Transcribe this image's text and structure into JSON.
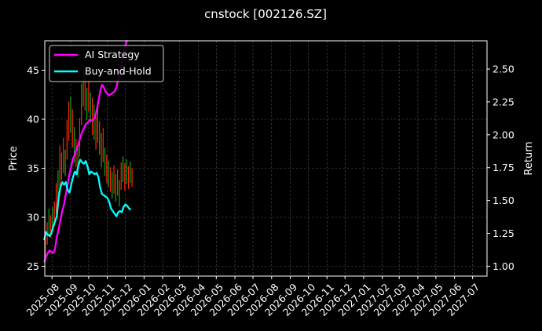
{
  "chart_data": {
    "type": "line",
    "title": "cnstock [002126.SZ]",
    "ylabel": "Price",
    "y2label": "Return",
    "grid": true,
    "legend_position": "top-left",
    "x_ticks": [
      "2025-08",
      "2025-09",
      "2025-10",
      "2025-11",
      "2025-12",
      "2026-01",
      "2026-02",
      "2026-03",
      "2026-04",
      "2026-05",
      "2026-06",
      "2026-07",
      "2026-08",
      "2026-09",
      "2026-10",
      "2026-11",
      "2026-12",
      "2027-01",
      "2027-02",
      "2027-03",
      "2027-04",
      "2027-05",
      "2027-06",
      "2027-07"
    ],
    "xlim": [
      "2025-07-20",
      "2027-07-25"
    ],
    "ylim": [
      24,
      48
    ],
    "y_ticks": [
      25,
      30,
      35,
      40,
      45
    ],
    "y2lim": [
      0.925,
      2.715
    ],
    "y2_ticks": [
      "1.00",
      "1.25",
      "1.50",
      "1.75",
      "2.00",
      "2.25",
      "2.50"
    ],
    "price_bars": {
      "colors": {
        "up": "#ff2a00",
        "down": "#1aa31a"
      },
      "bars": [
        {
          "date": "2025-07-21",
          "low": 25.8,
          "high": 27.9,
          "dir": "up"
        },
        {
          "date": "2025-07-24",
          "low": 27.2,
          "high": 29.5,
          "dir": "up"
        },
        {
          "date": "2025-07-27",
          "low": 28.1,
          "high": 30.9,
          "dir": "down"
        },
        {
          "date": "2025-07-30",
          "low": 27.9,
          "high": 30.2,
          "dir": "up"
        },
        {
          "date": "2025-08-02",
          "low": 28.6,
          "high": 31.0,
          "dir": "down"
        },
        {
          "date": "2025-08-05",
          "low": 29.1,
          "high": 31.6,
          "dir": "up"
        },
        {
          "date": "2025-08-08",
          "low": 30.4,
          "high": 33.5,
          "dir": "up"
        },
        {
          "date": "2025-08-11",
          "low": 31.6,
          "high": 34.8,
          "dir": "down"
        },
        {
          "date": "2025-08-14",
          "low": 33.2,
          "high": 37.3,
          "dir": "up"
        },
        {
          "date": "2025-08-17",
          "low": 33.8,
          "high": 36.6,
          "dir": "down"
        },
        {
          "date": "2025-08-20",
          "low": 34.5,
          "high": 38.1,
          "dir": "up"
        },
        {
          "date": "2025-08-23",
          "low": 34.2,
          "high": 36.9,
          "dir": "down"
        },
        {
          "date": "2025-08-26",
          "low": 35.9,
          "high": 39.9,
          "dir": "up"
        },
        {
          "date": "2025-08-29",
          "low": 37.8,
          "high": 41.8,
          "dir": "up"
        },
        {
          "date": "2025-09-01",
          "low": 38.6,
          "high": 42.3,
          "dir": "down"
        },
        {
          "date": "2025-09-04",
          "low": 37.1,
          "high": 41.0,
          "dir": "up"
        },
        {
          "date": "2025-09-07",
          "low": 35.6,
          "high": 39.2,
          "dir": "down"
        },
        {
          "date": "2025-09-10",
          "low": 35.1,
          "high": 38.0,
          "dir": "up"
        },
        {
          "date": "2025-09-13",
          "low": 34.0,
          "high": 37.2,
          "dir": "down"
        },
        {
          "date": "2025-09-16",
          "low": 36.2,
          "high": 40.1,
          "dir": "up"
        },
        {
          "date": "2025-09-19",
          "low": 39.4,
          "high": 43.6,
          "dir": "up"
        },
        {
          "date": "2025-09-22",
          "low": 41.3,
          "high": 45.6,
          "dir": "down"
        },
        {
          "date": "2025-09-25",
          "low": 40.9,
          "high": 44.8,
          "dir": "up"
        },
        {
          "date": "2025-09-28",
          "low": 39.9,
          "high": 43.2,
          "dir": "down"
        },
        {
          "date": "2025-10-01",
          "low": 40.8,
          "high": 44.1,
          "dir": "up"
        },
        {
          "date": "2025-10-04",
          "low": 39.6,
          "high": 42.7,
          "dir": "down"
        },
        {
          "date": "2025-10-07",
          "low": 38.4,
          "high": 42.2,
          "dir": "up"
        },
        {
          "date": "2025-10-10",
          "low": 37.9,
          "high": 41.5,
          "dir": "down"
        },
        {
          "date": "2025-10-13",
          "low": 36.9,
          "high": 40.9,
          "dir": "up"
        },
        {
          "date": "2025-10-16",
          "low": 37.6,
          "high": 41.6,
          "dir": "down"
        },
        {
          "date": "2025-10-19",
          "low": 36.4,
          "high": 39.8,
          "dir": "up"
        },
        {
          "date": "2025-10-22",
          "low": 35.1,
          "high": 38.6,
          "dir": "down"
        },
        {
          "date": "2025-10-25",
          "low": 35.6,
          "high": 39.1,
          "dir": "up"
        },
        {
          "date": "2025-10-28",
          "low": 34.2,
          "high": 37.1,
          "dir": "down"
        },
        {
          "date": "2025-10-31",
          "low": 33.5,
          "high": 36.4,
          "dir": "up"
        },
        {
          "date": "2025-11-03",
          "low": 33.1,
          "high": 35.8,
          "dir": "down"
        },
        {
          "date": "2025-11-06",
          "low": 32.6,
          "high": 35.1,
          "dir": "up"
        },
        {
          "date": "2025-11-09",
          "low": 31.9,
          "high": 34.6,
          "dir": "down"
        },
        {
          "date": "2025-11-12",
          "low": 32.4,
          "high": 35.3,
          "dir": "up"
        },
        {
          "date": "2025-11-15",
          "low": 31.6,
          "high": 34.4,
          "dir": "down"
        },
        {
          "date": "2025-11-18",
          "low": 32.2,
          "high": 34.9,
          "dir": "up"
        },
        {
          "date": "2025-11-21",
          "low": 31.1,
          "high": 33.8,
          "dir": "down"
        },
        {
          "date": "2025-11-24",
          "low": 32.8,
          "high": 35.6,
          "dir": "up"
        },
        {
          "date": "2025-11-27",
          "low": 33.6,
          "high": 36.2,
          "dir": "down"
        },
        {
          "date": "2025-11-30",
          "low": 32.7,
          "high": 35.5,
          "dir": "up"
        },
        {
          "date": "2025-12-03",
          "low": 33.4,
          "high": 35.9,
          "dir": "down"
        },
        {
          "date": "2025-12-06",
          "low": 32.9,
          "high": 35.2,
          "dir": "up"
        },
        {
          "date": "2025-12-09",
          "low": 33.5,
          "high": 35.7,
          "dir": "down"
        },
        {
          "date": "2025-12-12",
          "low": 33.1,
          "high": 35.0,
          "dir": "up"
        }
      ]
    },
    "series": [
      {
        "name": "AI Strategy",
        "color": "#ff00ff",
        "axis": "right",
        "points": [
          [
            "2025-07-19",
            1.03
          ],
          [
            "2025-07-22",
            1.07
          ],
          [
            "2025-07-25",
            1.1
          ],
          [
            "2025-07-28",
            1.12
          ],
          [
            "2025-07-31",
            1.11
          ],
          [
            "2025-08-03",
            1.1
          ],
          [
            "2025-08-06",
            1.13
          ],
          [
            "2025-08-09",
            1.22
          ],
          [
            "2025-08-12",
            1.28
          ],
          [
            "2025-08-15",
            1.35
          ],
          [
            "2025-08-18",
            1.42
          ],
          [
            "2025-08-21",
            1.47
          ],
          [
            "2025-08-24",
            1.55
          ],
          [
            "2025-08-27",
            1.62
          ],
          [
            "2025-08-30",
            1.7
          ],
          [
            "2025-09-02",
            1.76
          ],
          [
            "2025-09-05",
            1.82
          ],
          [
            "2025-09-08",
            1.85
          ],
          [
            "2025-09-11",
            1.89
          ],
          [
            "2025-09-14",
            1.93
          ],
          [
            "2025-09-17",
            1.98
          ],
          [
            "2025-09-20",
            2.02
          ],
          [
            "2025-09-23",
            2.05
          ],
          [
            "2025-09-26",
            2.08
          ],
          [
            "2025-09-29",
            2.09
          ],
          [
            "2025-10-02",
            2.11
          ],
          [
            "2025-10-05",
            2.11
          ],
          [
            "2025-10-08",
            2.11
          ],
          [
            "2025-10-11",
            2.13
          ],
          [
            "2025-10-14",
            2.18
          ],
          [
            "2025-10-17",
            2.25
          ],
          [
            "2025-10-20",
            2.33
          ],
          [
            "2025-10-23",
            2.38
          ],
          [
            "2025-10-26",
            2.36
          ],
          [
            "2025-10-29",
            2.33
          ],
          [
            "2025-11-01",
            2.31
          ],
          [
            "2025-11-04",
            2.3
          ],
          [
            "2025-11-07",
            2.31
          ],
          [
            "2025-11-10",
            2.32
          ],
          [
            "2025-11-13",
            2.33
          ],
          [
            "2025-11-16",
            2.36
          ],
          [
            "2025-11-19",
            2.42
          ],
          [
            "2025-11-22",
            2.48
          ],
          [
            "2025-11-25",
            2.55
          ],
          [
            "2025-11-28",
            2.62
          ],
          [
            "2025-12-01",
            2.68
          ],
          [
            "2025-12-04",
            2.72
          ]
        ]
      },
      {
        "name": "Buy-and-Hold",
        "color": "#00ffff",
        "axis": "right",
        "points": [
          [
            "2025-07-19",
            1.2
          ],
          [
            "2025-07-22",
            1.26
          ],
          [
            "2025-07-25",
            1.24
          ],
          [
            "2025-07-28",
            1.23
          ],
          [
            "2025-07-31",
            1.25
          ],
          [
            "2025-08-03",
            1.3
          ],
          [
            "2025-08-06",
            1.34
          ],
          [
            "2025-08-09",
            1.38
          ],
          [
            "2025-08-12",
            1.52
          ],
          [
            "2025-08-15",
            1.6
          ],
          [
            "2025-08-18",
            1.64
          ],
          [
            "2025-08-21",
            1.62
          ],
          [
            "2025-08-24",
            1.64
          ],
          [
            "2025-08-27",
            1.58
          ],
          [
            "2025-08-30",
            1.56
          ],
          [
            "2025-09-02",
            1.62
          ],
          [
            "2025-09-05",
            1.68
          ],
          [
            "2025-09-08",
            1.72
          ],
          [
            "2025-09-11",
            1.7
          ],
          [
            "2025-09-14",
            1.77
          ],
          [
            "2025-09-17",
            1.81
          ],
          [
            "2025-09-20",
            1.79
          ],
          [
            "2025-09-23",
            1.78
          ],
          [
            "2025-09-26",
            1.8
          ],
          [
            "2025-09-29",
            1.76
          ],
          [
            "2025-10-02",
            1.7
          ],
          [
            "2025-10-05",
            1.72
          ],
          [
            "2025-10-08",
            1.71
          ],
          [
            "2025-10-11",
            1.7
          ],
          [
            "2025-10-14",
            1.71
          ],
          [
            "2025-10-17",
            1.68
          ],
          [
            "2025-10-20",
            1.6
          ],
          [
            "2025-10-23",
            1.55
          ],
          [
            "2025-10-26",
            1.54
          ],
          [
            "2025-10-29",
            1.53
          ],
          [
            "2025-11-01",
            1.52
          ],
          [
            "2025-11-04",
            1.49
          ],
          [
            "2025-11-07",
            1.44
          ],
          [
            "2025-11-10",
            1.42
          ],
          [
            "2025-11-13",
            1.4
          ],
          [
            "2025-11-16",
            1.38
          ],
          [
            "2025-11-19",
            1.41
          ],
          [
            "2025-11-22",
            1.42
          ],
          [
            "2025-11-25",
            1.41
          ],
          [
            "2025-11-28",
            1.45
          ],
          [
            "2025-12-01",
            1.47
          ],
          [
            "2025-12-04",
            1.46
          ],
          [
            "2025-12-07",
            1.44
          ],
          [
            "2025-12-10",
            1.43
          ]
        ]
      }
    ]
  }
}
